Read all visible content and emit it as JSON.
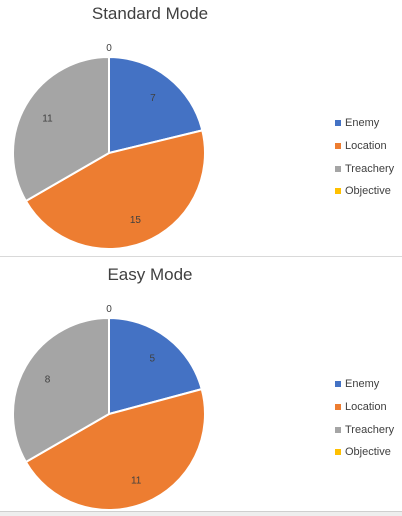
{
  "chart_data": [
    {
      "type": "pie",
      "title": "Standard Mode",
      "categories": [
        "Enemy",
        "Location",
        "Treachery",
        "Objective"
      ],
      "values": [
        7,
        15,
        11,
        0
      ],
      "colors": [
        "#4472C4",
        "#ED7D31",
        "#A5A5A5",
        "#FFC000"
      ],
      "legend_position": "right"
    },
    {
      "type": "pie",
      "title": "Easy Mode",
      "categories": [
        "Enemy",
        "Location",
        "Treachery",
        "Objective"
      ],
      "values": [
        5,
        11,
        8,
        0
      ],
      "colors": [
        "#4472C4",
        "#ED7D31",
        "#A5A5A5",
        "#FFC000"
      ],
      "legend_position": "right"
    }
  ]
}
